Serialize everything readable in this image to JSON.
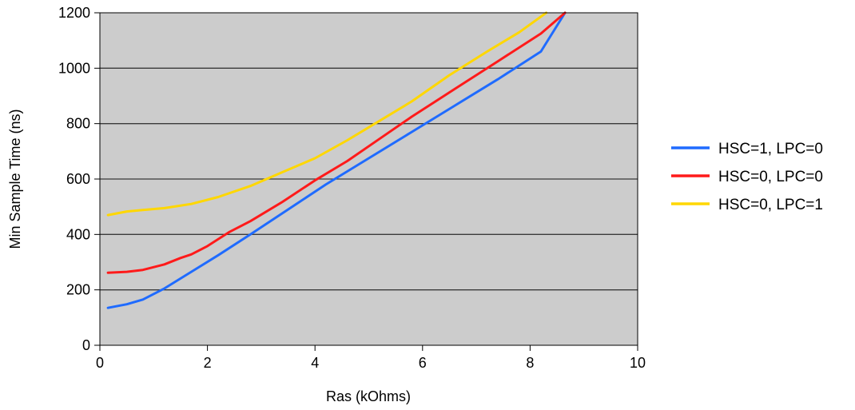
{
  "chart_data": {
    "type": "line",
    "title": "",
    "xlabel": "Ras (kOhms)",
    "ylabel": "Min Sample Time (ns)",
    "xlim": [
      0,
      10
    ],
    "ylim": [
      0,
      1200
    ],
    "xticks": [
      0,
      2,
      4,
      6,
      8,
      10
    ],
    "yticks": [
      0,
      200,
      400,
      600,
      800,
      1000,
      1200
    ],
    "grid": "horizontal",
    "plot_background": "#cccccc",
    "legend_position": "right",
    "series": [
      {
        "name": "HSC=1, LPC=0",
        "color": "#1f6bff",
        "x": [
          0.15,
          0.5,
          0.8,
          1.2,
          1.7,
          2.2,
          2.8,
          3.5,
          4.2,
          5.0,
          5.8,
          6.6,
          7.4,
          8.2,
          8.65
        ],
        "y": [
          135,
          148,
          165,
          205,
          265,
          325,
          400,
          490,
          580,
          675,
          770,
          865,
          960,
          1060,
          1200
        ]
      },
      {
        "name": "HSC=0, LPC=0",
        "color": "#ff1a1a",
        "x": [
          0.15,
          0.5,
          0.8,
          1.2,
          1.5,
          1.7,
          2.0,
          2.4,
          2.8,
          3.4,
          4.0,
          4.6,
          5.2,
          5.8,
          6.6,
          7.4,
          8.2,
          8.65
        ],
        "y": [
          262,
          265,
          272,
          292,
          315,
          328,
          358,
          408,
          448,
          518,
          595,
          665,
          745,
          825,
          925,
          1025,
          1125,
          1200
        ]
      },
      {
        "name": "HSC=0, LPC=1",
        "color": "#ffd700",
        "x": [
          0.15,
          0.5,
          0.8,
          1.2,
          1.7,
          2.2,
          2.8,
          3.4,
          4.0,
          4.6,
          5.2,
          5.8,
          6.5,
          7.2,
          7.8,
          8.3
        ],
        "y": [
          470,
          483,
          488,
          495,
          510,
          535,
          575,
          625,
          675,
          740,
          810,
          880,
          975,
          1060,
          1130,
          1200
        ]
      }
    ]
  }
}
